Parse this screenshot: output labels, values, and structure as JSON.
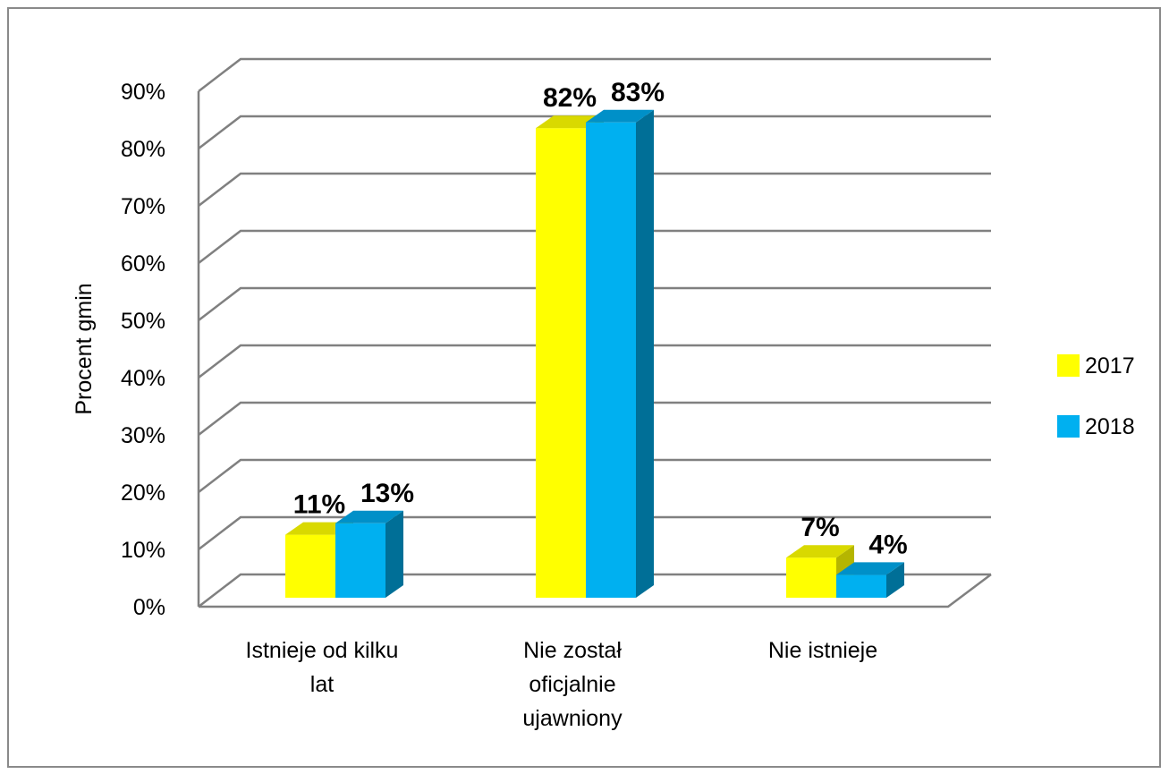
{
  "chart_data": {
    "type": "bar",
    "title": "",
    "xlabel": "",
    "ylabel": "Procent  gmin",
    "ylim": [
      0,
      90
    ],
    "y_ticks": [
      "0%",
      "10%",
      "20%",
      "30%",
      "40%",
      "50%",
      "60%",
      "70%",
      "80%",
      "90%"
    ],
    "categories": [
      [
        "Istnieje od kilku",
        "lat"
      ],
      [
        "Nie został",
        "oficjalnie",
        "ujawniony"
      ],
      [
        "Nie istnieje"
      ]
    ],
    "series": [
      {
        "name": "2017",
        "values": [
          11,
          82,
          7
        ],
        "labels": [
          "11%",
          "82%",
          "7%"
        ],
        "color": "#ffff00",
        "side_color": "#b5b500",
        "top_color": "#d9d900"
      },
      {
        "name": "2018",
        "values": [
          13,
          83,
          4
        ],
        "labels": [
          "13%",
          "83%",
          "4%"
        ],
        "color": "#00b0f0",
        "side_color": "#006f97",
        "top_color": "#0090c8"
      }
    ],
    "legend_position": "right",
    "grid": true,
    "style": "3d-clustered-column"
  }
}
